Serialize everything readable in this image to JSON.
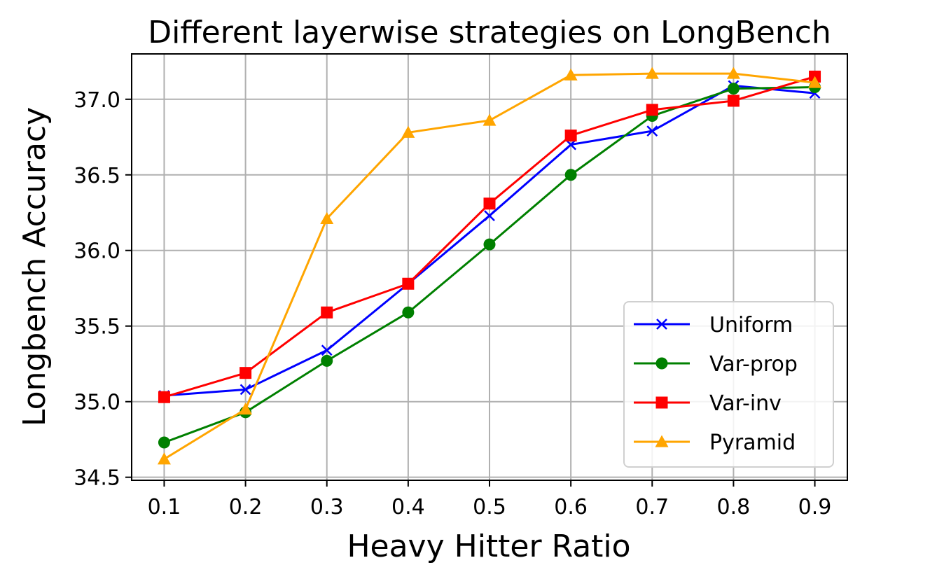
{
  "chart_data": {
    "type": "line",
    "title": "Different layerwise strategies on LongBench",
    "xlabel": "Heavy Hitter Ratio",
    "ylabel": "Longbench Accuracy",
    "x": [
      0.1,
      0.2,
      0.3,
      0.4,
      0.5,
      0.6,
      0.7,
      0.8,
      0.9
    ],
    "x_tick_labels": [
      "0.1",
      "0.2",
      "0.3",
      "0.4",
      "0.5",
      "0.6",
      "0.7",
      "0.8",
      "0.9"
    ],
    "y_ticks": [
      34.5,
      35.0,
      35.5,
      36.0,
      36.5,
      37.0
    ],
    "y_tick_labels": [
      "34.5",
      "35.0",
      "35.5",
      "36.0",
      "36.5",
      "37.0"
    ],
    "xlim": [
      0.06,
      0.94
    ],
    "ylim": [
      34.48,
      37.3
    ],
    "grid": true,
    "legend_position": "lower-right",
    "series": [
      {
        "name": "Uniform",
        "color": "#0000ff",
        "marker": "x",
        "values": [
          35.04,
          35.08,
          35.34,
          35.78,
          36.23,
          36.7,
          36.79,
          37.09,
          37.04
        ]
      },
      {
        "name": "Var-prop",
        "color": "#008000",
        "marker": "circle",
        "values": [
          34.73,
          34.93,
          35.27,
          35.59,
          36.04,
          36.5,
          36.89,
          37.07,
          37.08
        ]
      },
      {
        "name": "Var-inv",
        "color": "#ff0000",
        "marker": "square",
        "values": [
          35.03,
          35.19,
          35.59,
          35.78,
          36.31,
          36.76,
          36.93,
          36.99,
          37.15
        ]
      },
      {
        "name": "Pyramid",
        "color": "#ffa500",
        "marker": "triangle",
        "values": [
          34.62,
          34.95,
          36.21,
          36.78,
          36.86,
          37.16,
          37.17,
          37.17,
          37.11
        ]
      }
    ]
  }
}
